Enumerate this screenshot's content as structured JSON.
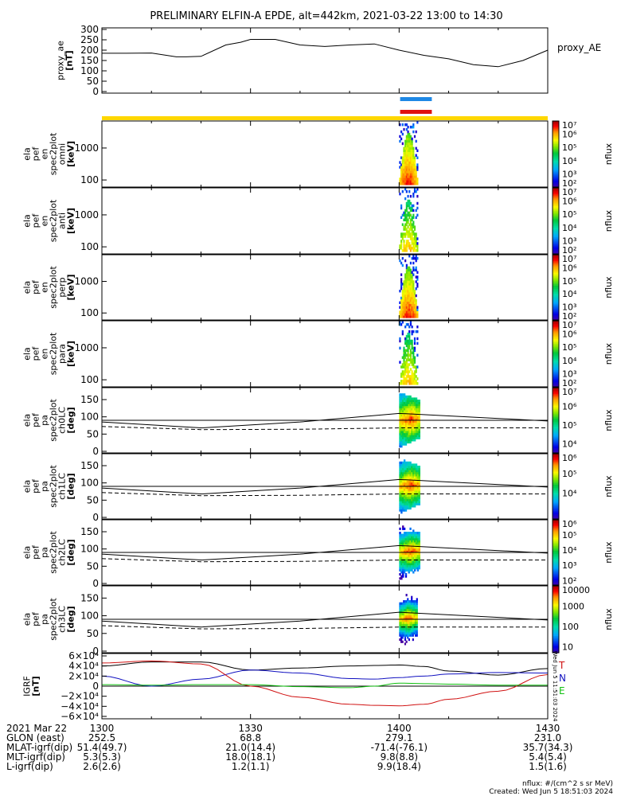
{
  "title": "PRELIMINARY ELFIN-A EPDE, alt=442km, 2021-03-22 13:00 to 14:30",
  "colors": {
    "blue_bar": "#1e88e5",
    "red_bar": "#e01010",
    "yellow_bar": "#ffd700",
    "curve_black": "#000000",
    "curve_blue": "#1010c0",
    "curve_red": "#d01010",
    "curve_green": "#10c010"
  },
  "chart_data": [
    {
      "type": "line",
      "name": "proxy_ae",
      "ylabel": "proxy_ae\n[nT]",
      "yticks": [
        "300",
        "250",
        "200",
        "150",
        "100",
        "50",
        "0"
      ],
      "ylim": [
        0,
        300
      ],
      "legend": "proxy_AE",
      "x_minutes": [
        0,
        5,
        10,
        15,
        17,
        20,
        25,
        28,
        30,
        35,
        40,
        45,
        50,
        55,
        60,
        65,
        70,
        75,
        80,
        85,
        90
      ],
      "values": [
        185,
        185,
        186,
        168,
        168,
        170,
        225,
        238,
        252,
        252,
        225,
        218,
        225,
        230,
        200,
        175,
        158,
        130,
        120,
        150,
        200
      ]
    },
    {
      "type": "heatmap",
      "name": "en_spec_omni",
      "ylabel": "ela\npef\nen\nspec2plot\nomni\n[keV]",
      "yticks": [
        "1000",
        "100"
      ],
      "ylog": true,
      "ylim": [
        60,
        7000
      ],
      "colorbar": {
        "label": "nflux",
        "ticks": [
          "10⁷",
          "10⁶",
          "10⁵",
          "10⁴",
          "10³",
          "10²"
        ],
        "min_exp": 2,
        "max_exp": 7
      }
    },
    {
      "type": "heatmap",
      "name": "en_spec_anti",
      "ylabel": "ela\npef\nen\nspec2plot\nanti\n[keV]",
      "yticks": [
        "1000",
        "100"
      ],
      "ylog": true,
      "ylim": [
        60,
        7000
      ],
      "colorbar": {
        "label": "nflux",
        "ticks": [
          "10⁷",
          "10⁶",
          "10⁵",
          "10⁴",
          "10³",
          "10²"
        ],
        "min_exp": 2,
        "max_exp": 7
      }
    },
    {
      "type": "heatmap",
      "name": "en_spec_perp",
      "ylabel": "ela\npef\nen\nspec2plot\nperp\n[keV]",
      "yticks": [
        "1000",
        "100"
      ],
      "ylog": true,
      "ylim": [
        60,
        7000
      ],
      "colorbar": {
        "label": "nflux",
        "ticks": [
          "10⁷",
          "10⁶",
          "10⁵",
          "10⁴",
          "10³",
          "10²"
        ],
        "min_exp": 2,
        "max_exp": 7
      }
    },
    {
      "type": "heatmap",
      "name": "en_spec_para",
      "ylabel": "ela\npef\nen\nspec2plot\npara\n[keV]",
      "yticks": [
        "1000",
        "100"
      ],
      "ylog": true,
      "ylim": [
        60,
        7000
      ],
      "colorbar": {
        "label": "nflux",
        "ticks": [
          "10⁷",
          "10⁶",
          "10⁵",
          "10⁴",
          "10³",
          "10²"
        ],
        "min_exp": 2,
        "max_exp": 7
      }
    },
    {
      "type": "heatmap",
      "name": "pa_spec_ch0",
      "ylabel": "ela\npef\npa\nspec2plot\nch0LC\n[deg]",
      "yticks": [
        "150",
        "100",
        "50",
        "0"
      ],
      "ylim": [
        0,
        180
      ],
      "colorbar": {
        "label": "nflux",
        "ticks": [
          "10⁷",
          "10⁶",
          "10⁵",
          "10⁴"
        ],
        "min_exp": 3.5,
        "max_exp": 7
      }
    },
    {
      "type": "heatmap",
      "name": "pa_spec_ch1",
      "ylabel": "ela\npef\npa\nspec2plot\nch1LC\n[deg]",
      "yticks": [
        "150",
        "100",
        "50",
        "0"
      ],
      "ylim": [
        0,
        180
      ],
      "colorbar": {
        "label": "nflux",
        "ticks": [
          "10⁶",
          "10⁵",
          "10⁴"
        ],
        "min_exp": 3.3,
        "max_exp": 6.6
      }
    },
    {
      "type": "heatmap",
      "name": "pa_spec_ch2",
      "ylabel": "ela\npef\npa\nspec2plot\nch2LC\n[deg]",
      "yticks": [
        "150",
        "100",
        "50",
        "0"
      ],
      "ylim": [
        0,
        180
      ],
      "colorbar": {
        "label": "nflux",
        "ticks": [
          "10⁶",
          "10⁵",
          "10⁴",
          "10³",
          "10²"
        ],
        "min_exp": 2,
        "max_exp": 6.3
      }
    },
    {
      "type": "heatmap",
      "name": "pa_spec_ch3",
      "ylabel": "ela\npef\npa\nspec2plot\nch3LC\n[deg]",
      "yticks": [
        "150",
        "100",
        "50",
        "0"
      ],
      "ylim": [
        0,
        180
      ],
      "colorbar": {
        "label": "nflux",
        "ticks": [
          "10000",
          "1000",
          "100",
          "10"
        ],
        "min_exp": 1,
        "max_exp": 4.3
      }
    },
    {
      "type": "line",
      "name": "igrf",
      "ylabel": "IGRF\n[nT]",
      "yticks": [
        "6×10⁴",
        "4×10⁴",
        "2×10⁴",
        "0",
        "−2×10⁴",
        "−4×10⁴",
        "−6×10⁴"
      ],
      "ylim": [
        -60000,
        60000
      ],
      "side_label": "Wed Jun  5 11:51:03 2024",
      "legend": [
        "T",
        "N",
        "E"
      ],
      "x_minutes": [
        0,
        10,
        20,
        30,
        40,
        50,
        55,
        60,
        65,
        70,
        80,
        90
      ],
      "series": [
        {
          "name": "T",
          "color": "black",
          "values": [
            40000,
            48000,
            48000,
            32000,
            36000,
            40000,
            41000,
            42000,
            39000,
            30000,
            22000,
            35000
          ]
        },
        {
          "name": "N",
          "color": "blue",
          "values": [
            20000,
            0,
            14000,
            32000,
            26000,
            15000,
            14000,
            17000,
            20000,
            24000,
            27000,
            26000
          ]
        },
        {
          "name": "E",
          "color": "red",
          "values": [
            46000,
            50000,
            44000,
            0,
            -22000,
            -36000,
            -38000,
            -39000,
            -36000,
            -26000,
            -10000,
            23000
          ]
        },
        {
          "name": "",
          "color": "green",
          "values": [
            3000,
            2000,
            3000,
            3000,
            -1000,
            -3000,
            0,
            6000,
            5000,
            4000,
            2000,
            2000
          ]
        }
      ]
    }
  ],
  "x_axis": {
    "tick_labels": [
      "1300",
      "1330",
      "1400",
      "1430"
    ],
    "tick_minutes": [
      0,
      30,
      60,
      90
    ]
  },
  "footer": {
    "rows": [
      {
        "label": "2021 Mar 22",
        "values": [
          "1300",
          "1330",
          "1400",
          "1430"
        ]
      },
      {
        "label": "GLON (east)",
        "values": [
          "252.5",
          "68.8",
          "279.1",
          "231.0"
        ]
      },
      {
        "label": "MLAT-igrf(dip)",
        "values": [
          "51.4(49.7)",
          "21.0(14.4)",
          "-71.4(-76.1)",
          "35.7(34.3)"
        ]
      },
      {
        "label": "MLT-igrf(dip)",
        "values": [
          "5.3(5.3)",
          "18.0(18.1)",
          "9.8(8.8)",
          "5.4(5.4)"
        ]
      },
      {
        "label": "L-igrf(dip)",
        "values": [
          "2.6(2.6)",
          "1.2(1.1)",
          "9.9(18.4)",
          "1.5(1.6)"
        ]
      }
    ],
    "units_note": "nflux: #/(cm^2 s sr MeV)",
    "created": "Created: Wed Jun  5 18:51:03 2024"
  }
}
